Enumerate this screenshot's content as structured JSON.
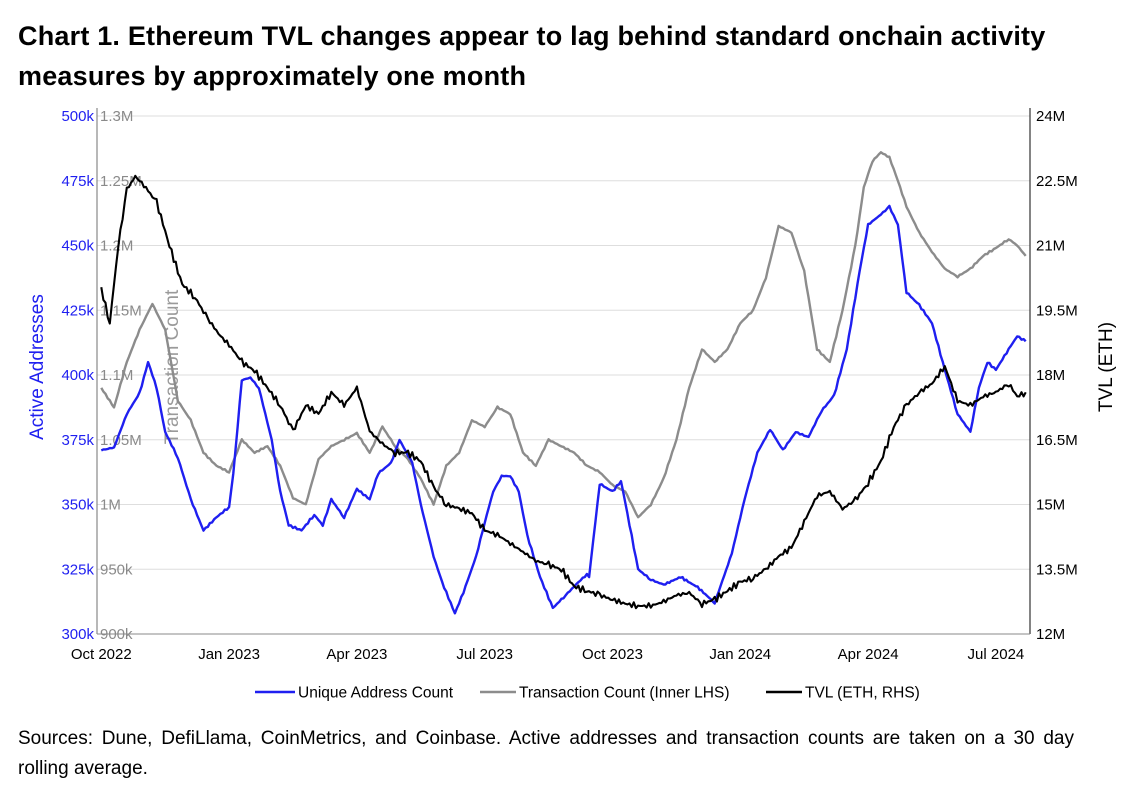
{
  "title": "Chart 1. Ethereum TVL changes appear to lag behind standard onchain activity measures by approximately one month",
  "footnote": "Sources: Dune, DefiLlama, CoinMetrics, and Coinbase. Active addresses and transaction counts are taken on a 30 day rolling average.",
  "colors": {
    "addresses": "#1f1ff0",
    "transactions": "#8c8c8c",
    "tvl": "#000000",
    "grid": "#dedede",
    "axis": "#888888"
  },
  "chart_data": {
    "type": "line",
    "x_tick_labels": [
      "Oct 2022",
      "Jan 2023",
      "Apr 2023",
      "Jul 2023",
      "Oct 2023",
      "Jan 2024",
      "Apr 2024",
      "Jul 2024"
    ],
    "x_tick_months": [
      0,
      3,
      6,
      9,
      12,
      15,
      18,
      21
    ],
    "x_range_months": [
      -0.1,
      21.8
    ],
    "left_axis": {
      "label": "Active Addresses",
      "range": [
        300000,
        500000
      ],
      "tick_labels": [
        "300k",
        "325k",
        "350k",
        "375k",
        "400k",
        "425k",
        "450k",
        "475k",
        "500k"
      ]
    },
    "inner_axis": {
      "label": "Transaction Count",
      "range": [
        900000,
        1300000
      ],
      "tick_labels": [
        "900k",
        "950k",
        "1M",
        "1.05M",
        "1.1M",
        "1.15M",
        "1.2M",
        "1.25M",
        "1.3M"
      ]
    },
    "right_axis": {
      "label": "TVL (ETH)",
      "range": [
        12000000,
        24000000
      ],
      "tick_labels": [
        "12M",
        "13.5M",
        "15M",
        "16.5M",
        "18M",
        "19.5M",
        "21M",
        "22.5M",
        "24M"
      ]
    },
    "grid": true,
    "legend_position": "bottom",
    "series": [
      {
        "name": "Unique Address Count",
        "axis": "left",
        "x_months": [
          0,
          0.3,
          0.6,
          0.9,
          1.1,
          1.3,
          1.5,
          1.8,
          2.1,
          2.4,
          2.7,
          3.0,
          3.1,
          3.3,
          3.5,
          3.7,
          4.0,
          4.2,
          4.4,
          4.7,
          5.0,
          5.2,
          5.4,
          5.7,
          6.0,
          6.3,
          6.5,
          6.8,
          7.0,
          7.3,
          7.5,
          7.8,
          8.0,
          8.3,
          8.5,
          8.8,
          9.0,
          9.2,
          9.4,
          9.6,
          9.8,
          10.0,
          10.3,
          10.6,
          10.9,
          11.2,
          11.4,
          11.45,
          11.7,
          12.0,
          12.2,
          12.25,
          12.6,
          12.9,
          13.2,
          13.6,
          14.0,
          14.4,
          14.8,
          15.1,
          15.4,
          15.7,
          16.0,
          16.3,
          16.6,
          16.9,
          17.2,
          17.5,
          17.8,
          18.0,
          18.3,
          18.5,
          18.7,
          18.9,
          19.2,
          19.5,
          19.8,
          20.1,
          20.4,
          20.6,
          20.8,
          21.0,
          21.3,
          21.5,
          21.7
        ],
        "values": [
          371000,
          372000,
          385000,
          393000,
          405000,
          395000,
          378000,
          368000,
          352000,
          340000,
          345000,
          349000,
          362000,
          398000,
          399000,
          395000,
          375000,
          355000,
          342000,
          340000,
          346000,
          342000,
          352000,
          345000,
          356000,
          352000,
          362000,
          366000,
          375000,
          366000,
          350000,
          330000,
          320000,
          308000,
          316000,
          330000,
          343000,
          355000,
          361000,
          361000,
          355000,
          338000,
          322000,
          310000,
          315000,
          320000,
          323000,
          322000,
          358000,
          355000,
          359000,
          355000,
          325000,
          321000,
          319000,
          322000,
          318000,
          312000,
          331000,
          352000,
          370000,
          379000,
          371000,
          378000,
          376000,
          386000,
          392000,
          410000,
          440000,
          458000,
          462000,
          465000,
          458000,
          432000,
          427000,
          420000,
          402000,
          385000,
          378000,
          395000,
          405000,
          402000,
          410000,
          415000,
          413000
        ]
      },
      {
        "name": "Transaction Count (Inner LHS)",
        "axis": "inner",
        "x_months": [
          0,
          0.3,
          0.6,
          0.9,
          1.2,
          1.5,
          1.8,
          2.1,
          2.4,
          2.7,
          3.0,
          3.3,
          3.6,
          3.9,
          4.2,
          4.5,
          4.8,
          5.1,
          5.4,
          5.7,
          6.0,
          6.3,
          6.6,
          6.9,
          7.2,
          7.5,
          7.8,
          8.1,
          8.4,
          8.7,
          9.0,
          9.3,
          9.6,
          9.9,
          10.2,
          10.5,
          10.8,
          11.1,
          11.4,
          11.7,
          12.0,
          12.3,
          12.6,
          12.9,
          13.2,
          13.5,
          13.8,
          14.1,
          14.4,
          14.7,
          15.0,
          15.3,
          15.6,
          15.9,
          16.2,
          16.5,
          16.8,
          17.1,
          17.4,
          17.7,
          17.9,
          18.1,
          18.3,
          18.5,
          18.7,
          18.9,
          19.2,
          19.5,
          19.8,
          20.1,
          20.4,
          20.7,
          21.0,
          21.3,
          21.5,
          21.7
        ],
        "values": [
          1090000,
          1075000,
          1110000,
          1135000,
          1155000,
          1135000,
          1080000,
          1065000,
          1040000,
          1030000,
          1025000,
          1050000,
          1040000,
          1045000,
          1030000,
          1005000,
          1000000,
          1035000,
          1045000,
          1050000,
          1055000,
          1040000,
          1060000,
          1045000,
          1035000,
          1020000,
          1000000,
          1030000,
          1040000,
          1065000,
          1060000,
          1075000,
          1070000,
          1040000,
          1030000,
          1050000,
          1045000,
          1040000,
          1030000,
          1025000,
          1015000,
          1010000,
          990000,
          1000000,
          1020000,
          1050000,
          1090000,
          1120000,
          1110000,
          1120000,
          1140000,
          1150000,
          1175000,
          1215000,
          1210000,
          1180000,
          1120000,
          1110000,
          1150000,
          1200000,
          1245000,
          1265000,
          1272000,
          1268000,
          1250000,
          1230000,
          1210000,
          1195000,
          1182000,
          1176000,
          1182000,
          1192000,
          1198000,
          1205000,
          1200000,
          1192000
        ]
      },
      {
        "name": "TVL (ETH, RHS)",
        "axis": "right",
        "x_months": [
          0,
          0.2,
          0.4,
          0.6,
          0.8,
          1.0,
          1.3,
          1.6,
          1.9,
          2.2,
          2.5,
          2.8,
          3.0,
          3.3,
          3.6,
          3.9,
          4.2,
          4.5,
          4.8,
          5.1,
          5.4,
          5.7,
          6.0,
          6.3,
          6.6,
          6.9,
          7.2,
          7.5,
          7.8,
          8.1,
          8.4,
          8.7,
          9.0,
          9.3,
          9.6,
          9.9,
          10.2,
          10.5,
          10.8,
          11.1,
          11.4,
          11.7,
          12.0,
          12.3,
          12.6,
          12.9,
          13.2,
          13.5,
          13.8,
          14.1,
          14.4,
          14.7,
          15.0,
          15.3,
          15.6,
          15.9,
          16.2,
          16.5,
          16.8,
          17.1,
          17.4,
          17.7,
          18.0,
          18.3,
          18.6,
          18.9,
          19.2,
          19.5,
          19.8,
          20.1,
          20.4,
          20.7,
          21.0,
          21.3,
          21.5,
          21.7
        ],
        "values": [
          20000000,
          19200000,
          21000000,
          22300000,
          22600000,
          22400000,
          22000000,
          21000000,
          20100000,
          19800000,
          19300000,
          18900000,
          18700000,
          18300000,
          18100000,
          17700000,
          17300000,
          16700000,
          17300000,
          17100000,
          17600000,
          17300000,
          17700000,
          16700000,
          16400000,
          16200000,
          16200000,
          16000000,
          15400000,
          15000000,
          14900000,
          14800000,
          14400000,
          14300000,
          14100000,
          13900000,
          13700000,
          13600000,
          13500000,
          13100000,
          13000000,
          12900000,
          12800000,
          12700000,
          12650000,
          12650000,
          12750000,
          12900000,
          12950000,
          12700000,
          12800000,
          13000000,
          13200000,
          13300000,
          13500000,
          13800000,
          14000000,
          14600000,
          15200000,
          15300000,
          14900000,
          15100000,
          15500000,
          16000000,
          16800000,
          17300000,
          17600000,
          17800000,
          18200000,
          17400000,
          17300000,
          17500000,
          17600000,
          17800000,
          17500000,
          17600000
        ]
      }
    ]
  }
}
